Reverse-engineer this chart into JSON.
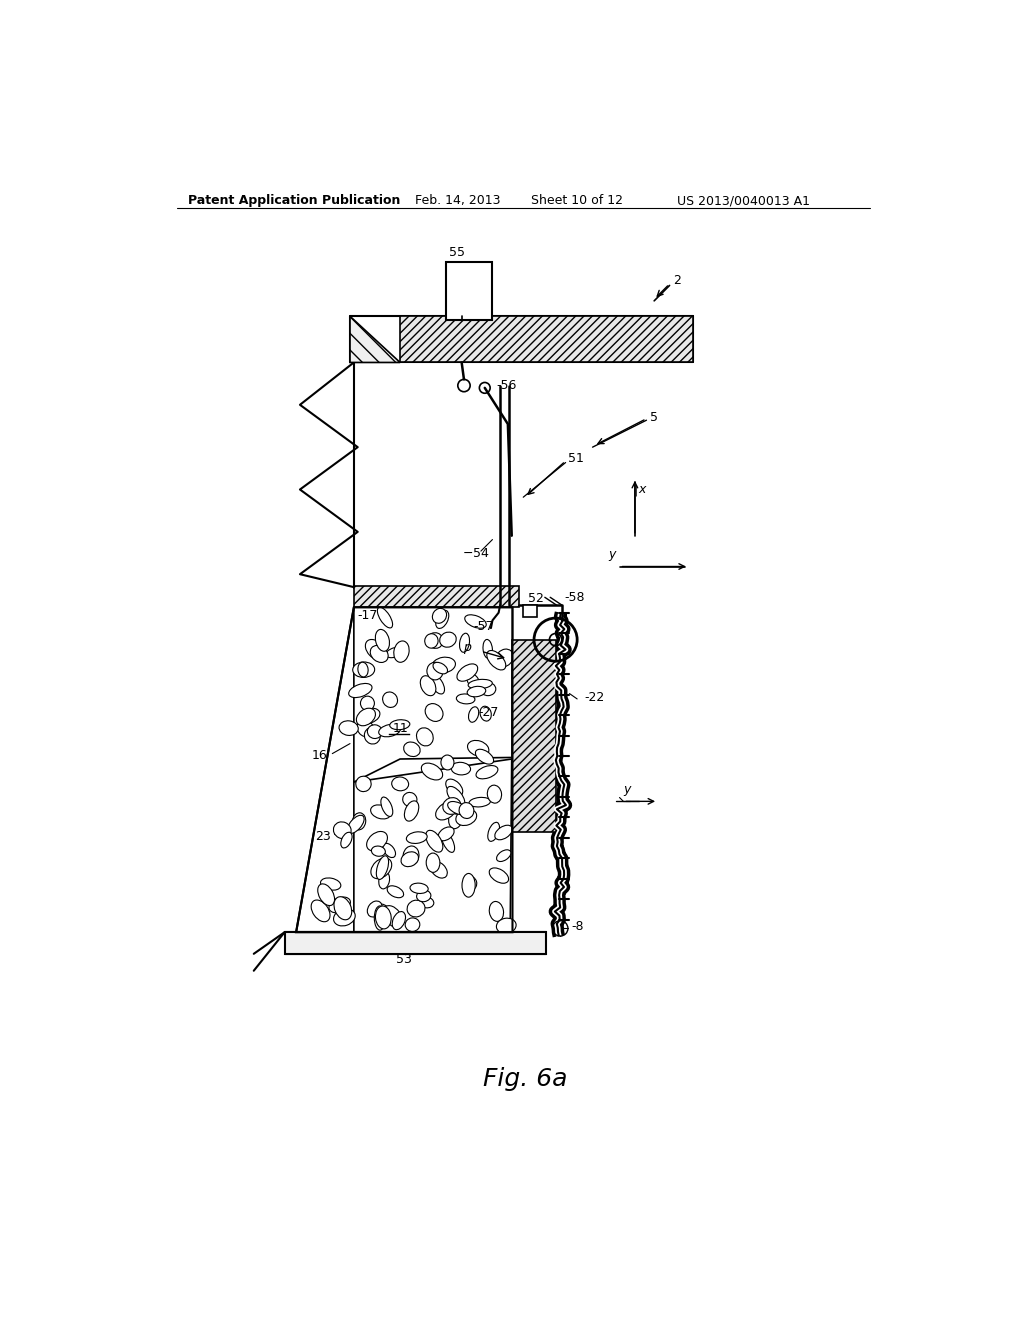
{
  "bg_color": "#ffffff",
  "header_text": "Patent Application Publication",
  "header_date": "Feb. 14, 2013",
  "header_sheet": "Sheet 10 of 12",
  "header_patent": "US 2013/0040013 A1",
  "caption": "Fig. 6a",
  "fig_width": 10.24,
  "fig_height": 13.2
}
